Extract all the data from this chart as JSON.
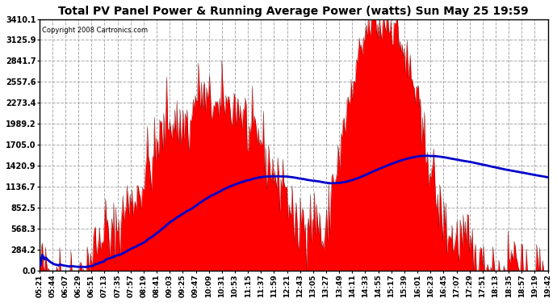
{
  "title": "Total PV Panel Power & Running Average Power (watts) Sun May 25 19:59",
  "copyright": "Copyright 2008 Cartronics.com",
  "background_color": "#ffffff",
  "plot_background": "#ffffff",
  "grid_color": "#aaaaaa",
  "bar_color": "#ff0000",
  "line_color": "#0000cc",
  "ytick_labels": [
    "0.0",
    "284.2",
    "568.3",
    "852.5",
    "1136.7",
    "1420.9",
    "1705.0",
    "1989.2",
    "2273.4",
    "2557.6",
    "2841.7",
    "3125.9",
    "3410.1"
  ],
  "ytick_values": [
    0.0,
    284.2,
    568.3,
    852.5,
    1136.7,
    1420.9,
    1705.0,
    1989.2,
    2273.4,
    2557.6,
    2841.7,
    3125.9,
    3410.1
  ],
  "ymax": 3410.1,
  "xtick_labels": [
    "05:21",
    "05:44",
    "06:07",
    "06:29",
    "06:51",
    "07:13",
    "07:35",
    "07:57",
    "08:19",
    "08:41",
    "09:03",
    "09:25",
    "09:47",
    "10:09",
    "10:31",
    "10:53",
    "11:15",
    "11:37",
    "11:59",
    "12:21",
    "12:43",
    "13:05",
    "13:27",
    "13:49",
    "14:11",
    "14:33",
    "14:55",
    "15:17",
    "15:39",
    "16:01",
    "16:23",
    "16:45",
    "17:07",
    "17:29",
    "17:51",
    "18:13",
    "18:35",
    "18:57",
    "19:19",
    "19:42"
  ],
  "line_width": 2.0,
  "title_fontsize": 10,
  "tick_fontsize": 7,
  "xtick_fontsize": 6.5
}
